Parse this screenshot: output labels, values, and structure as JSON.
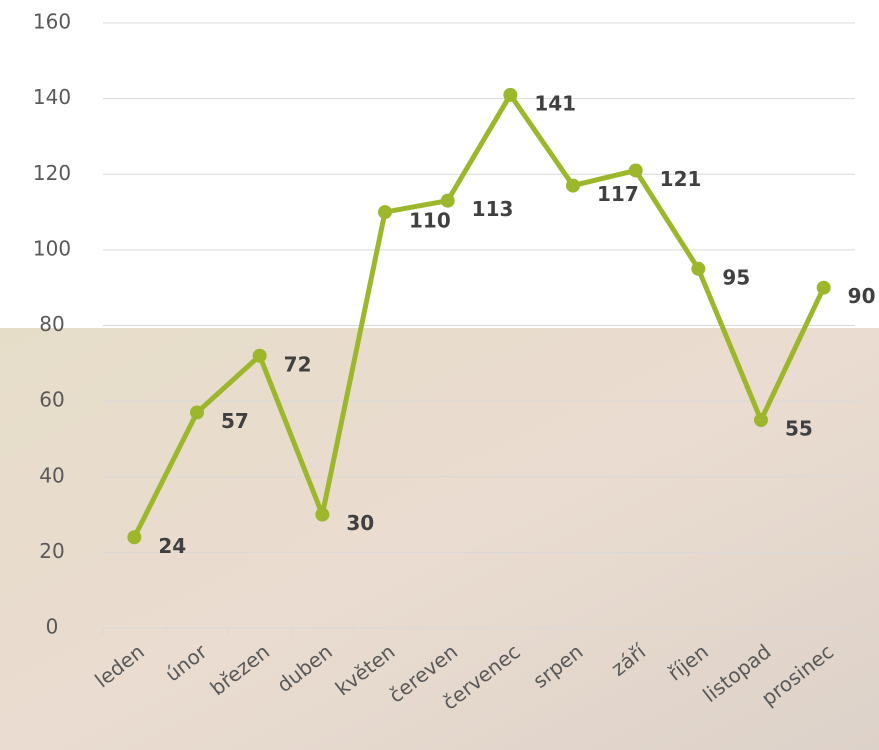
{
  "chart_data": {
    "type": "line",
    "categories": [
      "leden",
      "únor",
      "březen",
      "duben",
      "květen",
      "čereven",
      "červenec",
      "srpen",
      "září",
      "říjen",
      "listopad",
      "prosinec"
    ],
    "series": [
      {
        "color": "#9cb72b",
        "values": [
          24,
          57,
          72,
          30,
          110,
          113,
          141,
          117,
          121,
          95,
          55,
          90
        ]
      }
    ],
    "ylim": [
      0,
      160
    ],
    "yticks": [
      0,
      20,
      40,
      60,
      80,
      100,
      120,
      140,
      160
    ],
    "grid": true
  }
}
